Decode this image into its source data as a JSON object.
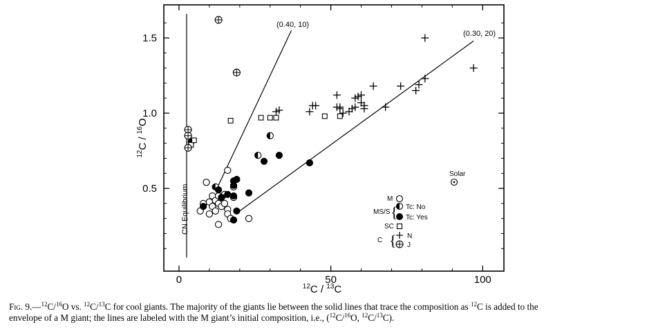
{
  "chart_data": {
    "type": "scatter",
    "xlabel": "12C/13C",
    "ylabel": "12C/16O",
    "xlim": [
      -5,
      107
    ],
    "ylim": [
      -0.05,
      1.72
    ],
    "xticks": [
      0,
      50,
      100
    ],
    "yticks": [
      0.5,
      1.0,
      1.5
    ],
    "grid": false,
    "legend_position": "bottom-right",
    "series": [
      {
        "name": "M",
        "marker": "open-circle",
        "points": [
          [
            7,
            0.35
          ],
          [
            8,
            0.4
          ],
          [
            9,
            0.54
          ],
          [
            10,
            0.41
          ],
          [
            10,
            0.33
          ],
          [
            11,
            0.45
          ],
          [
            11,
            0.38
          ],
          [
            12,
            0.35
          ],
          [
            12,
            0.42
          ],
          [
            13,
            0.45
          ],
          [
            13,
            0.4
          ],
          [
            13,
            0.26
          ],
          [
            14,
            0.38
          ],
          [
            14,
            0.44
          ],
          [
            15,
            0.4
          ],
          [
            15,
            0.46
          ],
          [
            16,
            0.36
          ],
          [
            16,
            0.33
          ],
          [
            16,
            0.62
          ],
          [
            17,
            0.3
          ],
          [
            18,
            0.44
          ],
          [
            18,
            0.51
          ],
          [
            23,
            0.3
          ]
        ]
      },
      {
        "name": "Tc: No",
        "marker": "half-filled-circle",
        "points": [
          [
            12,
            0.51
          ],
          [
            26,
            0.72
          ],
          [
            30,
            0.85
          ]
        ]
      },
      {
        "name": "Tc: Yes",
        "marker": "filled-circle",
        "points": [
          [
            4,
            0.81
          ],
          [
            8,
            0.38
          ],
          [
            13,
            0.49
          ],
          [
            14,
            0.44
          ],
          [
            16,
            0.46
          ],
          [
            18,
            0.55
          ],
          [
            18,
            0.52
          ],
          [
            18,
            0.45
          ],
          [
            18,
            0.29
          ],
          [
            19,
            0.35
          ],
          [
            19,
            0.56
          ],
          [
            23,
            0.47
          ],
          [
            28,
            0.68
          ],
          [
            33,
            0.72
          ],
          [
            43,
            0.67
          ]
        ]
      },
      {
        "name": "SC",
        "marker": "open-square",
        "points": [
          [
            4,
            0.79
          ],
          [
            5,
            0.82
          ],
          [
            17,
            0.95
          ],
          [
            27,
            0.97
          ],
          [
            30,
            0.97
          ],
          [
            32,
            0.97
          ],
          [
            48,
            0.98
          ],
          [
            53,
            0.98
          ]
        ]
      },
      {
        "name": "N",
        "marker": "plus",
        "points": [
          [
            32,
            1.01
          ],
          [
            33,
            1.02
          ],
          [
            43,
            1.01
          ],
          [
            44,
            1.05
          ],
          [
            45,
            1.05
          ],
          [
            52,
            1.04
          ],
          [
            52,
            1.12
          ],
          [
            53,
            1.04
          ],
          [
            53,
            1.03
          ],
          [
            54,
            1.0
          ],
          [
            56,
            1.01
          ],
          [
            57,
            1.03
          ],
          [
            58,
            1.04
          ],
          [
            58,
            1.1
          ],
          [
            59,
            1.11
          ],
          [
            60,
            1.07
          ],
          [
            60,
            1.12
          ],
          [
            61,
            1.05
          ],
          [
            61,
            1.03
          ],
          [
            64,
            1.18
          ],
          [
            68,
            1.04
          ],
          [
            73,
            1.18
          ],
          [
            78,
            1.15
          ],
          [
            79,
            1.19
          ],
          [
            81,
            1.23
          ],
          [
            81,
            1.5
          ],
          [
            97,
            1.3
          ]
        ]
      },
      {
        "name": "J",
        "marker": "circled-plus",
        "points": [
          [
            3,
            0.89
          ],
          [
            3,
            0.85
          ],
          [
            3,
            0.77
          ],
          [
            13,
            1.62
          ],
          [
            19,
            1.27
          ]
        ]
      }
    ],
    "lines": [
      {
        "label": "(0.40,10)",
        "points": [
          [
            12.5,
            0.5
          ],
          [
            37,
            1.55
          ]
        ]
      },
      {
        "label": "(0.30,20)",
        "points": [
          [
            20,
            0.35
          ],
          [
            97,
            1.48
          ]
        ]
      },
      {
        "label": "CN Equilibrium",
        "points": [
          [
            2.5,
            0.04
          ],
          [
            2.5,
            1.66
          ]
        ]
      }
    ],
    "annotations": [
      {
        "text": "Solar",
        "x": 88.5,
        "y": 0.56,
        "marker": "sun"
      }
    ],
    "legend": {
      "groups": [
        {
          "group": "M",
          "items": [
            {
              "label": "",
              "marker": "open-circle"
            }
          ]
        },
        {
          "group": "MS/S",
          "items": [
            {
              "label": "Tc:No",
              "marker": "half-filled-circle"
            },
            {
              "label": "Tc: Yes",
              "marker": "filled-circle"
            }
          ]
        },
        {
          "group": "SC",
          "items": [
            {
              "label": "",
              "marker": "open-square"
            }
          ]
        },
        {
          "group": "C",
          "items": [
            {
              "label": "N",
              "marker": "plus"
            },
            {
              "label": "J",
              "marker": "circled-plus"
            }
          ]
        }
      ]
    }
  },
  "labels": {
    "tick_x": [
      "0",
      "50",
      "100"
    ],
    "tick_y": [
      "0.5",
      "1.0",
      "1.5"
    ],
    "line_a": "(0.40, 10)",
    "line_b": "(0.30, 20)",
    "cn_eq": "CN Equilibrium",
    "solar": "Solar",
    "legend_m": "M",
    "legend_mss": "MS/S",
    "legend_tcno": "Tc: No",
    "legend_tcyes": "Tc: Yes",
    "legend_sc": "SC",
    "legend_c": "C",
    "legend_n": "N",
    "legend_j": "J"
  },
  "caption": {
    "fig": "Fig. 9.",
    "title_pre": "—",
    "title_text": "C/O vs. C/C for cool giants. The majority of the giants lie between the solid lines that trace the composition as C is added to the envelope of a M giant; the lines are labeled with the M giant's initial composition, i.e., (C/O, C/C).",
    "s1": "12",
    "s2": "16",
    "s3": "12",
    "s4": "13",
    "s5": "12",
    "s6": "12",
    "s7": "16",
    "s8": "12",
    "s9": "13",
    "part1": "C/",
    "part2": "O vs. ",
    "part3": "C/",
    "part4": "C for cool giants. The majority of the giants lie between the solid lines that trace the composition as ",
    "part5": "C is added to the",
    "part6": "envelope of a M giant; the lines are labeled with the M giant’s initial composition, i.e., (",
    "part7": "C/",
    "part8": "O, ",
    "part9": "C/",
    "part10": "C)."
  }
}
